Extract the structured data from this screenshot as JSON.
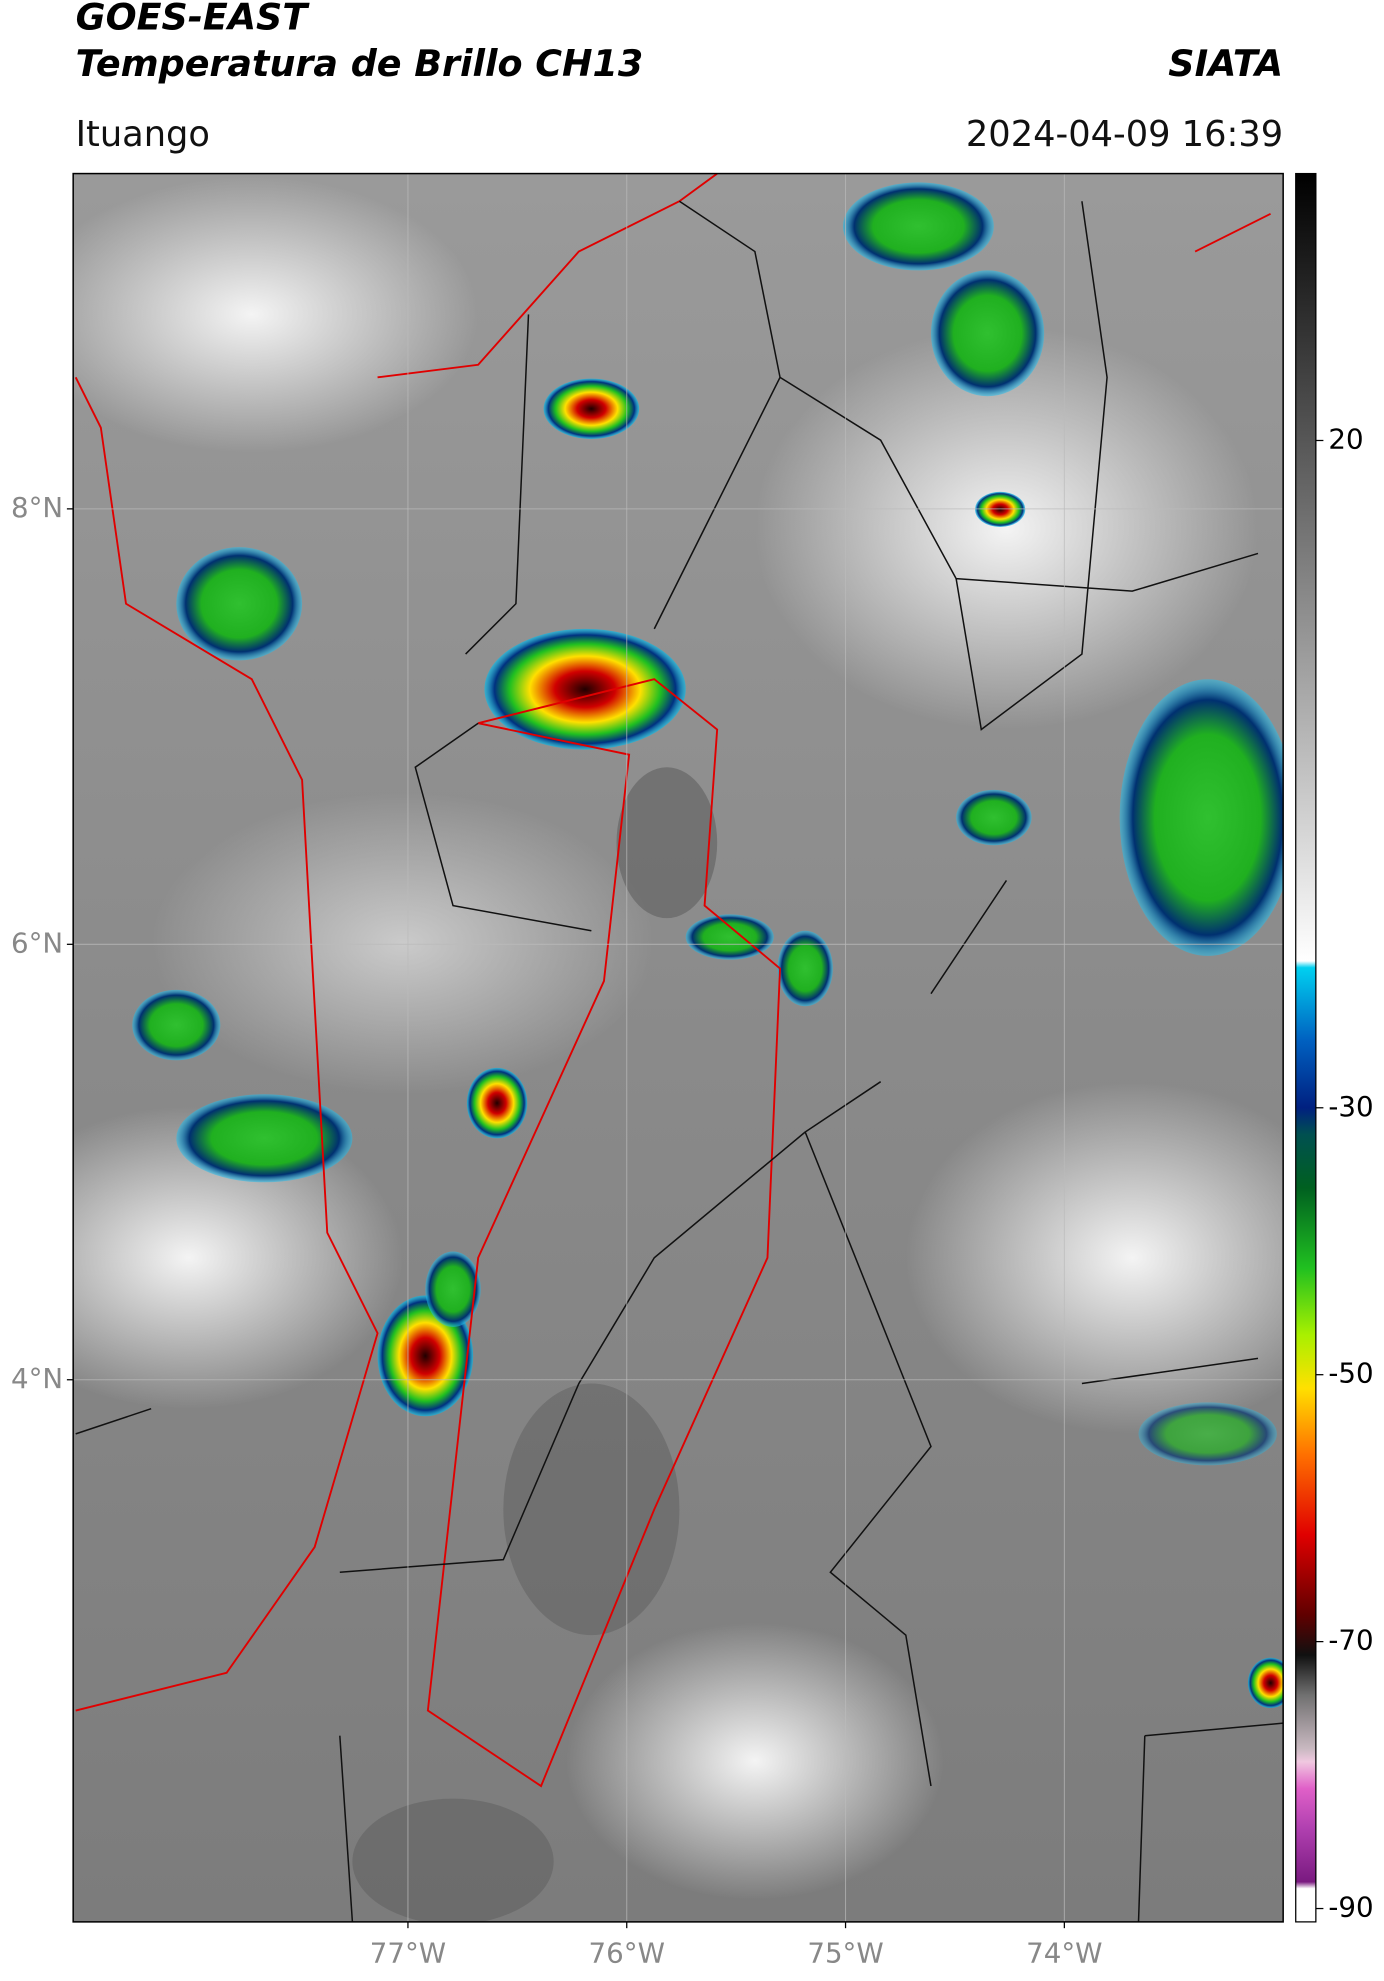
{
  "header": {
    "title": "GOES-EAST",
    "subtitle": "Temperatura de Brillo CH13",
    "source": "SIATA",
    "location": "Ituango",
    "timestamp": "2024-04-09 16:39"
  },
  "map": {
    "xlim": [
      -78.53,
      -73.0
    ],
    "ylim": [
      1.51,
      9.54
    ],
    "xticks": [
      {
        "value": -77,
        "label": "77°W"
      },
      {
        "value": -76,
        "label": "76°W"
      },
      {
        "value": -75,
        "label": "75°W"
      },
      {
        "value": -74,
        "label": "74°W"
      }
    ],
    "yticks": [
      {
        "value": 8,
        "label": "8°N"
      },
      {
        "value": 6,
        "label": "6°N"
      },
      {
        "value": 4,
        "label": "4°N"
      }
    ],
    "grid": true
  },
  "colorbar": {
    "lim": [
      -91,
      40
    ],
    "ticks": [
      20,
      -30,
      -50,
      -70,
      -90
    ],
    "stops": [
      {
        "value": -91,
        "color": "#ffffff"
      },
      {
        "value": -88.5,
        "color": "#ffffff"
      },
      {
        "value": -88,
        "color": "#7a1a80"
      },
      {
        "value": -84,
        "color": "#b040b0"
      },
      {
        "value": -81,
        "color": "#e060c8"
      },
      {
        "value": -79,
        "color": "#f0c8e0"
      },
      {
        "value": -78,
        "color": "#c8b8c0"
      },
      {
        "value": -74,
        "color": "#707070"
      },
      {
        "value": -71,
        "color": "#101010"
      },
      {
        "value": -68,
        "color": "#600000"
      },
      {
        "value": -62,
        "color": "#e00000"
      },
      {
        "value": -56,
        "color": "#ff7000"
      },
      {
        "value": -51,
        "color": "#ffe000"
      },
      {
        "value": -47,
        "color": "#a8f000"
      },
      {
        "value": -42,
        "color": "#20c020"
      },
      {
        "value": -36,
        "color": "#006020"
      },
      {
        "value": -32,
        "color": "#005050"
      },
      {
        "value": -30,
        "color": "#002080"
      },
      {
        "value": -25,
        "color": "#0060c0"
      },
      {
        "value": -19.5,
        "color": "#00d0f0"
      },
      {
        "value": -19,
        "color": "#ffffff"
      },
      {
        "value": 40,
        "color": "#000000"
      }
    ]
  }
}
